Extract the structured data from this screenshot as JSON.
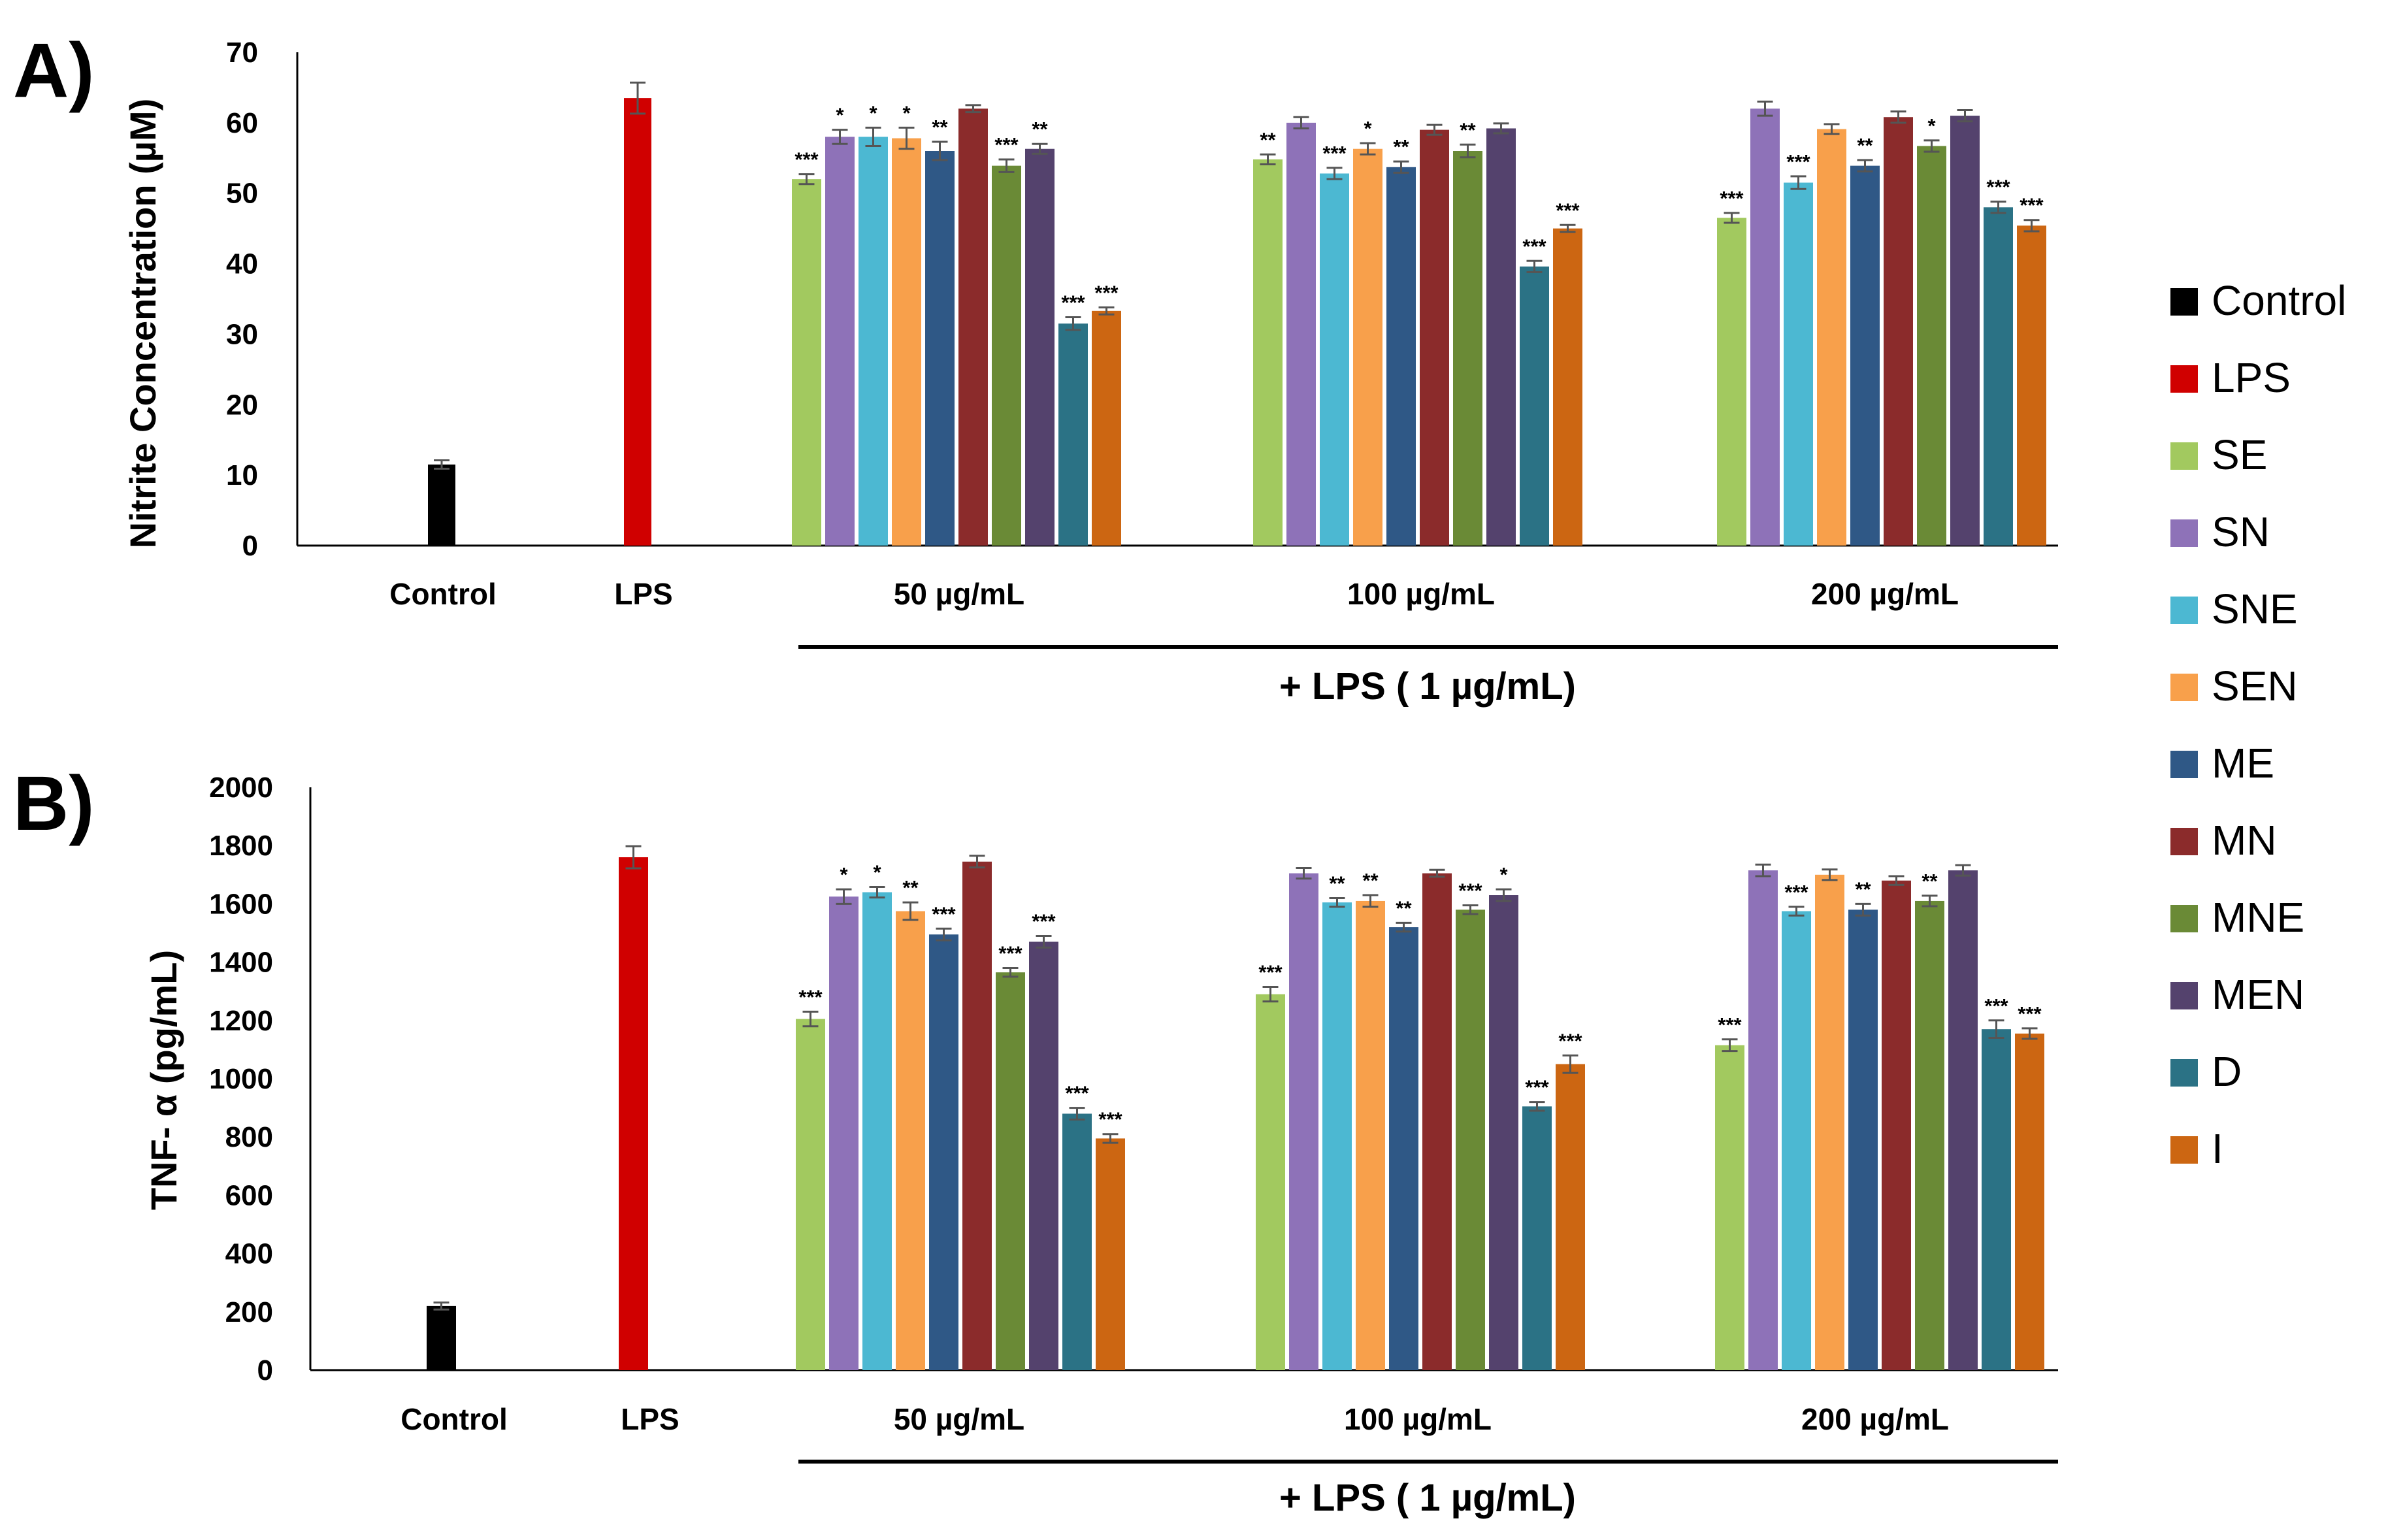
{
  "panels": [
    {
      "label": "A)",
      "ylabel": "Nitrite Concentration (µM)",
      "lps_caption": "+ LPS ( 1 µg/mL)",
      "group_labels": [
        "Control",
        "LPS",
        "50  µg/mL",
        "100  µg/mL",
        "200  µg/mL"
      ]
    },
    {
      "label": "B)",
      "ylabel": "TNF- α (pg/mL)",
      "lps_caption": "+ LPS ( 1 µg/mL)",
      "group_labels": [
        "Control",
        "LPS",
        "50  µg/mL",
        "100  µg/mL",
        "200  µg/mL"
      ]
    }
  ],
  "legend": {
    "items": [
      {
        "name": "Control",
        "color": "#000000"
      },
      {
        "name": "LPS",
        "color": "#d00000"
      },
      {
        "name": "SE",
        "color": "#a2c95f"
      },
      {
        "name": "SN",
        "color": "#8e72b8"
      },
      {
        "name": "SNE",
        "color": "#4cb8d2"
      },
      {
        "name": "SEN",
        "color": "#f8a04b"
      },
      {
        "name": "ME",
        "color": "#2f5886"
      },
      {
        "name": "MN",
        "color": "#8b2b2b"
      },
      {
        "name": "MNE",
        "color": "#6a8a36"
      },
      {
        "name": "MEN",
        "color": "#54426d"
      },
      {
        "name": "D",
        "color": "#2b7285"
      },
      {
        "name": "I",
        "color": "#cc6612"
      }
    ]
  },
  "chart_data": [
    {
      "type": "bar",
      "title": "A)",
      "xlabel": "",
      "ylabel": "Nitrite Concentration (µM)",
      "ylim": [
        0,
        70
      ],
      "yticks": [
        0,
        10,
        20,
        30,
        40,
        50,
        60,
        70
      ],
      "ytick_labels": [
        "0",
        "10",
        "20",
        "30",
        "40",
        "50",
        "60",
        "70"
      ],
      "grid": false,
      "legend_position": "right",
      "controls": [
        {
          "group": "Control",
          "series": "Control",
          "value": 11.5,
          "error": 0.6
        },
        {
          "group": "LPS",
          "series": "LPS",
          "value": 63.5,
          "error": 2.2
        }
      ],
      "categories": [
        "50  µg/mL",
        "100  µg/mL",
        "200  µg/mL"
      ],
      "series": [
        {
          "name": "SE",
          "values": [
            52,
            54.8,
            46.5
          ],
          "errors": [
            0.7,
            0.7,
            0.7
          ],
          "sig": [
            "***",
            "**",
            "***"
          ]
        },
        {
          "name": "SN",
          "values": [
            58,
            60,
            62
          ],
          "errors": [
            1.0,
            0.8,
            1.0
          ],
          "sig": [
            "*",
            "",
            ""
          ]
        },
        {
          "name": "SNE",
          "values": [
            58,
            52.8,
            51.5
          ],
          "errors": [
            1.3,
            0.8,
            0.9
          ],
          "sig": [
            "*",
            "***",
            "***"
          ]
        },
        {
          "name": "SEN",
          "values": [
            57.8,
            56.3,
            59.1
          ],
          "errors": [
            1.5,
            0.8,
            0.7
          ],
          "sig": [
            "*",
            "*",
            ""
          ]
        },
        {
          "name": "ME",
          "values": [
            56,
            53.7,
            53.9
          ],
          "errors": [
            1.3,
            0.8,
            0.8
          ],
          "sig": [
            "**",
            "**",
            "**"
          ]
        },
        {
          "name": "MN",
          "values": [
            62,
            59,
            60.8
          ],
          "errors": [
            0.5,
            0.7,
            0.8
          ],
          "sig": [
            "",
            "",
            ""
          ]
        },
        {
          "name": "MNE",
          "values": [
            53.9,
            56,
            56.7
          ],
          "errors": [
            0.9,
            0.9,
            0.8
          ],
          "sig": [
            "***",
            "**",
            "*"
          ]
        },
        {
          "name": "MEN",
          "values": [
            56.3,
            59.2,
            61
          ],
          "errors": [
            0.7,
            0.7,
            0.8
          ],
          "sig": [
            "**",
            "",
            ""
          ]
        },
        {
          "name": "D",
          "values": [
            31.5,
            39.6,
            48
          ],
          "errors": [
            0.9,
            0.8,
            0.8
          ],
          "sig": [
            "***",
            "***",
            "***"
          ]
        },
        {
          "name": "I",
          "values": [
            33.3,
            45,
            45.4
          ],
          "errors": [
            0.5,
            0.5,
            0.8
          ],
          "sig": [
            "***",
            "***",
            "***"
          ]
        }
      ],
      "lps_treatment_label": "+ LPS ( 1 µg/mL)"
    },
    {
      "type": "bar",
      "title": "B)",
      "xlabel": "",
      "ylabel": "TNF- α (pg/mL)",
      "ylim": [
        0,
        2000
      ],
      "yticks": [
        0,
        200,
        400,
        600,
        800,
        1000,
        1200,
        1400,
        1600,
        1800,
        2000
      ],
      "ytick_labels": [
        "0",
        "200",
        "400",
        "600",
        "800",
        "1000",
        "1200",
        "1400",
        "1600",
        "1800",
        "2000"
      ],
      "grid": false,
      "legend_position": "right",
      "controls": [
        {
          "group": "Control",
          "series": "Control",
          "value": 220,
          "error": 12
        },
        {
          "group": "LPS",
          "series": "LPS",
          "value": 1760,
          "error": 38
        }
      ],
      "categories": [
        "50  µg/mL",
        "100  µg/mL",
        "200  µg/mL"
      ],
      "series": [
        {
          "name": "SE",
          "values": [
            1205,
            1290,
            1115
          ],
          "errors": [
            25,
            25,
            20
          ],
          "sig": [
            "***",
            "***",
            "***"
          ]
        },
        {
          "name": "SN",
          "values": [
            1625,
            1705,
            1715
          ],
          "errors": [
            25,
            18,
            20
          ],
          "sig": [
            "*",
            "",
            ""
          ]
        },
        {
          "name": "SNE",
          "values": [
            1640,
            1605,
            1575
          ],
          "errors": [
            18,
            15,
            15
          ],
          "sig": [
            "*",
            "**",
            "***"
          ]
        },
        {
          "name": "SEN",
          "values": [
            1575,
            1610,
            1700
          ],
          "errors": [
            30,
            20,
            18
          ],
          "sig": [
            "**",
            "**",
            ""
          ]
        },
        {
          "name": "ME",
          "values": [
            1495,
            1520,
            1580
          ],
          "errors": [
            20,
            15,
            20
          ],
          "sig": [
            "***",
            "**",
            "**"
          ]
        },
        {
          "name": "MN",
          "values": [
            1745,
            1705,
            1680
          ],
          "errors": [
            20,
            12,
            15
          ],
          "sig": [
            "",
            "",
            ""
          ]
        },
        {
          "name": "MNE",
          "values": [
            1365,
            1580,
            1610
          ],
          "errors": [
            15,
            15,
            18
          ],
          "sig": [
            "***",
            "***",
            "**"
          ]
        },
        {
          "name": "MEN",
          "values": [
            1470,
            1630,
            1715
          ],
          "errors": [
            20,
            20,
            18
          ],
          "sig": [
            "***",
            "*",
            ""
          ]
        },
        {
          "name": "D",
          "values": [
            880,
            905,
            1170
          ],
          "errors": [
            20,
            15,
            30
          ],
          "sig": [
            "***",
            "***",
            "***"
          ]
        },
        {
          "name": "I",
          "values": [
            795,
            1050,
            1155
          ],
          "errors": [
            15,
            30,
            18
          ],
          "sig": [
            "***",
            "***",
            "***"
          ]
        }
      ],
      "lps_treatment_label": "+ LPS ( 1 µg/mL)"
    }
  ]
}
